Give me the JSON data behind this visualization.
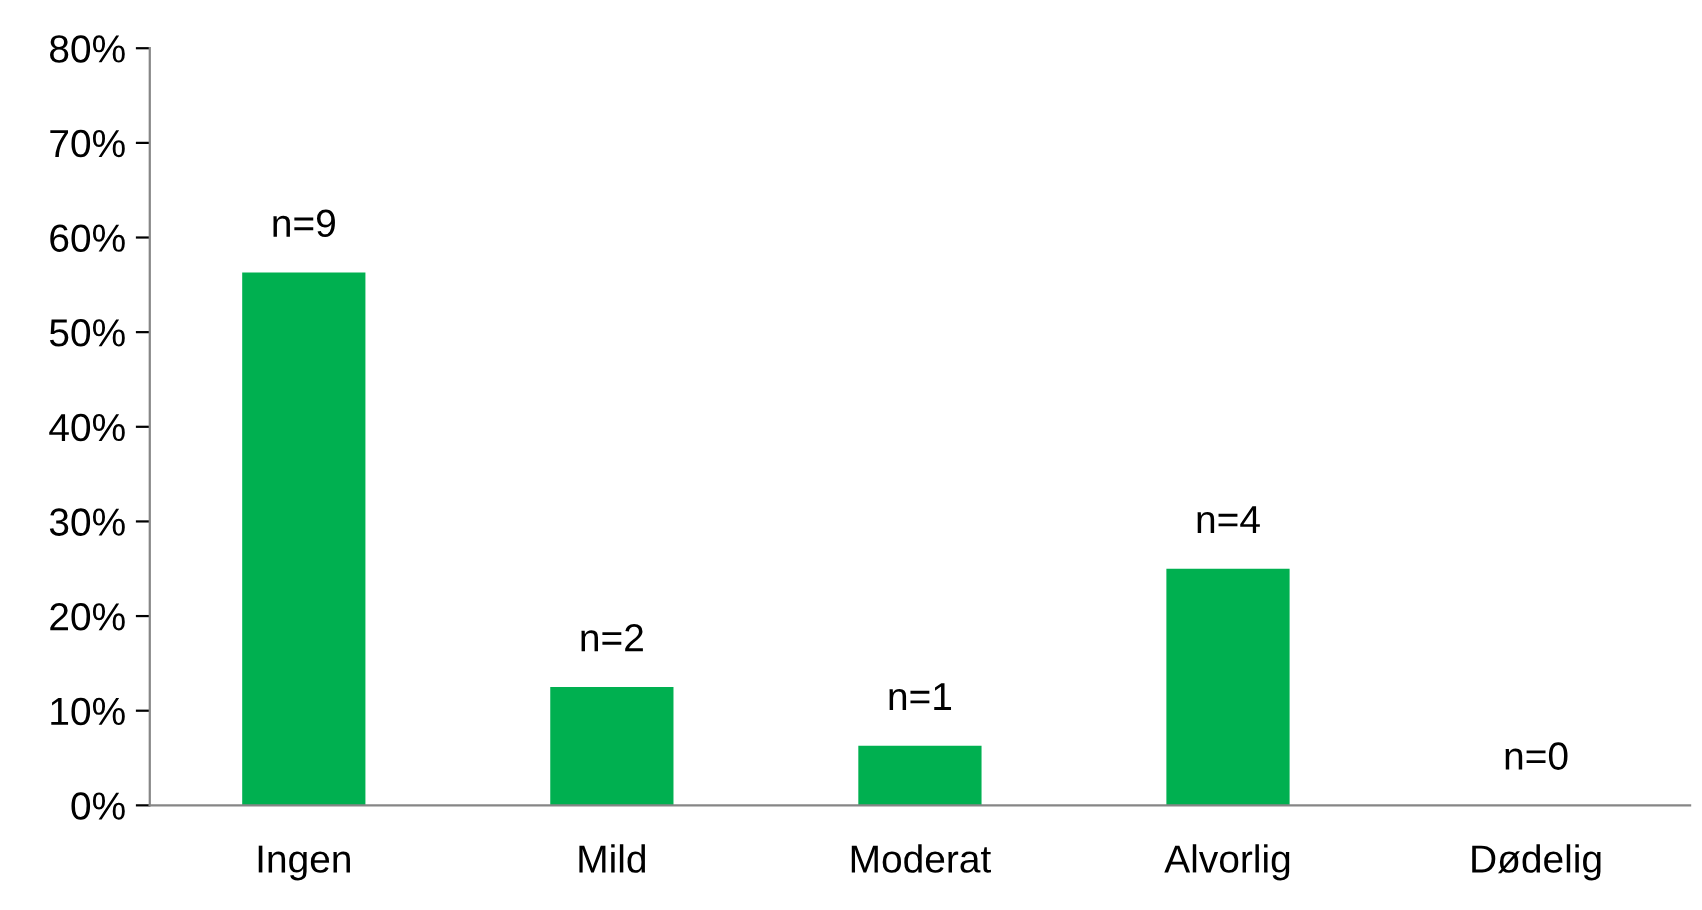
{
  "chart_data": {
    "type": "bar",
    "categories": [
      "Ingen",
      "Mild",
      "Moderat",
      "Alvorlig",
      "Dødelig"
    ],
    "values": [
      56.3,
      12.5,
      6.3,
      25,
      0
    ],
    "annotations": [
      {
        "text": "n=9",
        "x": "Ingen",
        "y": 56.3
      },
      {
        "text": "n=2",
        "x": "Mild",
        "y": 12.5
      },
      {
        "text": "n=1",
        "x": "Moderat",
        "y": 6.3
      },
      {
        "text": "n=4",
        "x": "Alvorlig",
        "y": 25
      },
      {
        "text": "n=0",
        "x": "Dødelig",
        "y": 0
      }
    ],
    "color": "#00b050",
    "ylim": [
      0,
      80
    ],
    "yticks": [
      {
        "value": 0,
        "label": "0%"
      },
      {
        "value": 10,
        "label": "10%"
      },
      {
        "value": 20,
        "label": "20%"
      },
      {
        "value": 30,
        "label": "30%"
      },
      {
        "value": 40,
        "label": "40%"
      },
      {
        "value": 50,
        "label": "50%"
      },
      {
        "value": 60,
        "label": "60%"
      },
      {
        "value": 70,
        "label": "70%"
      },
      {
        "value": 80,
        "label": "80%"
      }
    ],
    "grid": false,
    "legend": false
  }
}
